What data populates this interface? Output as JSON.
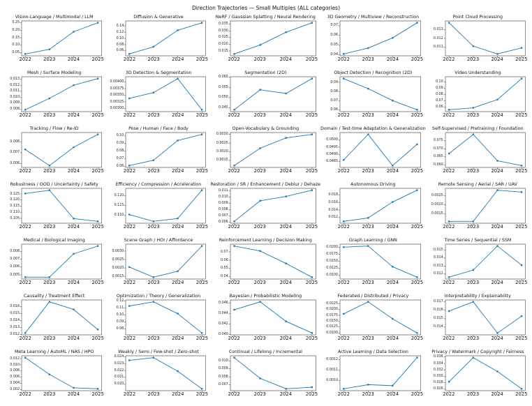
{
  "chart_data": {
    "type": "line",
    "layout": "small-multiples-grid-5x7",
    "title": "Direction Trajectories — Small Multiples (ALL categories)",
    "categories": [
      "2022",
      "2023",
      "2024",
      "2025"
    ],
    "line_color": "#1f77b4",
    "spine_color": "#555555",
    "legend": "none",
    "grid": "off",
    "marker": "square",
    "subplots": [
      {
        "title": "Vision-Language / Multimodal / LLM",
        "values": [
          0.041,
          0.072,
          0.19,
          0.25
        ],
        "yticks": [
          "0.05",
          "0.10",
          "0.15",
          "0.20",
          "0.25"
        ]
      },
      {
        "title": "Diffusion & Generative",
        "values": [
          0.05,
          0.073,
          0.126,
          0.15
        ],
        "yticks": [
          "0.06",
          "0.08",
          "0.10",
          "0.12",
          "0.14"
        ]
      },
      {
        "title": "NeRF / Gaussian Splatting / Neural Rendering",
        "values": [
          0.0128,
          0.0195,
          0.029,
          0.036
        ],
        "yticks": [
          "0.015",
          "0.020",
          "0.025",
          "0.030",
          "0.035"
        ]
      },
      {
        "title": "3D Geometry / Multiview / Reconstruction",
        "values": [
          0.041,
          0.047,
          0.0575,
          0.073
        ],
        "yticks": [
          "0.04",
          "0.05",
          "0.06",
          "0.07"
        ]
      },
      {
        "title": "Point Cloud Processing",
        "values": [
          0.0138,
          0.0111,
          0.0102,
          0.0109
        ],
        "yticks": [
          "0.011",
          "0.012",
          "0.013"
        ]
      },
      {
        "title": "Mesh / Surface Modeling",
        "values": [
          0.0079,
          0.0098,
          0.012,
          0.0131
        ],
        "yticks": [
          "0.008",
          "0.009",
          "0.010",
          "0.011",
          "0.012",
          "0.013"
        ]
      },
      {
        "title": "3D Detection & Segmentation",
        "values": [
          0.00338,
          0.0036,
          0.00413,
          0.00295
        ],
        "yticks": [
          "0.00300",
          "0.00325",
          "0.00350",
          "0.00375",
          "0.00400"
        ]
      },
      {
        "title": "Segmentation (2D)",
        "values": [
          0.044,
          0.0538,
          0.052,
          0.0593
        ],
        "yticks": [
          "0.045",
          "0.050",
          "0.055",
          "0.060"
        ]
      },
      {
        "title": "Object Detection / Recognition (2D)",
        "values": [
          0.094,
          0.083,
          0.07,
          0.06
        ],
        "yticks": [
          "0.06",
          "0.07",
          "0.08",
          "0.09"
        ]
      },
      {
        "title": "Video Understanding",
        "values": [
          0.056,
          0.059,
          0.072,
          0.105
        ],
        "yticks": [
          "0.06",
          "0.07",
          "0.08",
          "0.09",
          "0.10"
        ]
      },
      {
        "title": "Tracking / Flow / Re-ID",
        "values": [
          0.0073,
          0.0058,
          0.0075,
          0.0087
        ],
        "yticks": [
          "0.006",
          "0.007",
          "0.008"
        ]
      },
      {
        "title": "Pose / Human / Face / Body",
        "values": [
          0.061,
          0.068,
          0.094,
          0.102
        ],
        "yticks": [
          "0.06",
          "0.07",
          "0.08",
          "0.09",
          "0.10"
        ]
      },
      {
        "title": "Open-Vocabulary & Grounding",
        "values": [
          0.0012,
          0.0022,
          0.0028,
          0.003
        ],
        "yticks": [
          "0.0015",
          "0.0020",
          "0.0025",
          "0.0030"
        ]
      },
      {
        "title": "Domain / Test-time Adaptation & Generalization",
        "values": [
          0.0486,
          0.0504,
          0.0482,
          0.0497
        ],
        "yticks": [
          "0.0485",
          "0.0490",
          "0.0495",
          "0.0500"
        ]
      },
      {
        "title": "Self-Supervised / Pretraining / Foundation",
        "values": [
          0.067,
          0.079,
          0.0625,
          0.0595
        ],
        "yticks": [
          "0.060",
          "0.065",
          "0.070",
          "0.075"
        ]
      },
      {
        "title": "Robustness / OOD / Uncertainty / Safety",
        "values": [
          0.1253,
          0.128,
          0.1048,
          0.1025
        ],
        "yticks": [
          "0.105",
          "0.110",
          "0.115",
          "0.120",
          "0.125"
        ]
      },
      {
        "title": "Efficiency / Compression / Acceleration",
        "values": [
          0.1103,
          0.1068,
          0.1083,
          0.1228
        ],
        "yticks": [
          "0.110",
          "0.115",
          "0.120"
        ]
      },
      {
        "title": "Restoration / SR / Enhancement / Deblur / Dehaze",
        "values": [
          0.0061,
          0.0094,
          0.0101,
          0.0111
        ],
        "yticks": [
          "0.006",
          "0.007",
          "0.008",
          "0.009",
          "0.010",
          "0.011"
        ]
      },
      {
        "title": "Autonomous Driving",
        "values": [
          0.011,
          0.0119,
          0.0161,
          0.0192
        ],
        "yticks": [
          "0.012",
          "0.014",
          "0.016",
          "0.018"
        ]
      },
      {
        "title": "Remote Sensing / Aerial / SAR / UAV",
        "values": [
          0.0011,
          0.0011,
          0.0028,
          0.0027
        ],
        "yticks": [
          "0.0015",
          "0.0020",
          "0.0025"
        ]
      },
      {
        "title": "Medical / Biological Imaging",
        "values": [
          0.0047,
          0.0047,
          0.0077,
          0.0087
        ],
        "yticks": [
          "0.005",
          "0.006",
          "0.007",
          "0.008"
        ]
      },
      {
        "title": "Scene Graph / HOI / Affordance",
        "values": [
          0.00205,
          0.00145,
          0.0018,
          0.0033
        ],
        "yticks": [
          "0.0015",
          "0.0020",
          "0.0025",
          "0.0030"
        ]
      },
      {
        "title": "Reinforcement Learning / Decision Making",
        "values": [
          0.077,
          0.071,
          0.056,
          0.0395
        ],
        "yticks": [
          "0.04",
          "0.05",
          "0.06",
          "0.07"
        ]
      },
      {
        "title": "Graph Learning / GNN",
        "values": [
          0.02,
          0.0204,
          0.0131,
          0.0094
        ],
        "yticks": [
          "0.0100",
          "0.0125",
          "0.0150",
          "0.0175",
          "0.0200"
        ]
      },
      {
        "title": "Time Series / Sequential / SSM",
        "values": [
          0.0116,
          0.0125,
          0.0155,
          0.0131
        ],
        "yticks": [
          "0.012",
          "0.013",
          "0.014",
          "0.015"
        ]
      },
      {
        "title": "Causality / Treatment Effect",
        "values": [
          0.0122,
          0.0167,
          0.0156,
          0.0127
        ],
        "yticks": [
          "0.012",
          "0.013",
          "0.014",
          "0.015",
          "0.016"
        ]
      },
      {
        "title": "Optimization / Theory / Generalization",
        "values": [
          0.113,
          0.119,
          0.102,
          0.074
        ],
        "yticks": [
          "0.08",
          "0.09",
          "0.10",
          "0.11",
          "0.12"
        ]
      },
      {
        "title": "Bayesian / Probabilistic Modeling",
        "values": [
          0.0447,
          0.0462,
          0.0425,
          0.0403
        ],
        "yticks": [
          "0.040",
          "0.042",
          "0.044",
          "0.046"
        ]
      },
      {
        "title": "Federated / Distributed / Privacy",
        "values": [
          0.0181,
          0.0232,
          0.016,
          0.01
        ],
        "yticks": [
          "0.0100",
          "0.0125",
          "0.0150",
          "0.0175",
          "0.0200",
          "0.0225"
        ]
      },
      {
        "title": "Interpretability / Explainability",
        "values": [
          0.0159,
          0.017,
          0.0133,
          0.0153
        ],
        "yticks": [
          "0.014",
          "0.015",
          "0.016",
          "0.017"
        ]
      },
      {
        "title": "Meta Learning / AutoML / NAS / HPO",
        "values": [
          0.0123,
          0.0069,
          0.0026,
          0.0023
        ],
        "yticks": [
          "0.002",
          "0.004",
          "0.006",
          "0.008",
          "0.010",
          "0.012"
        ]
      },
      {
        "title": "Weakly / Semi / Few-shot / Zero-shot",
        "values": [
          0.0235,
          0.0239,
          0.0219,
          0.0193
        ],
        "yticks": [
          "0.020",
          "0.021",
          "0.022",
          "0.023",
          "0.024"
        ]
      },
      {
        "title": "Continual / Lifelong / Incremental",
        "values": [
          0.0104,
          0.0078,
          0.0065,
          0.0067
        ],
        "yticks": [
          "0.007",
          "0.008",
          "0.009",
          "0.010"
        ]
      },
      {
        "title": "Active Learning / Data Selection",
        "values": [
          0.00092,
          0.00096,
          0.00095,
          0.00122
        ],
        "yticks": [
          "0.0010",
          "0.0011",
          "0.0012"
        ]
      },
      {
        "title": "Privacy / Watermark / Copyright / Fairness",
        "values": [
          0.0283,
          0.0358,
          0.0315,
          0.0261
        ],
        "yticks": [
          "0.026",
          "0.028",
          "0.030",
          "0.032",
          "0.034",
          "0.036"
        ]
      }
    ]
  }
}
